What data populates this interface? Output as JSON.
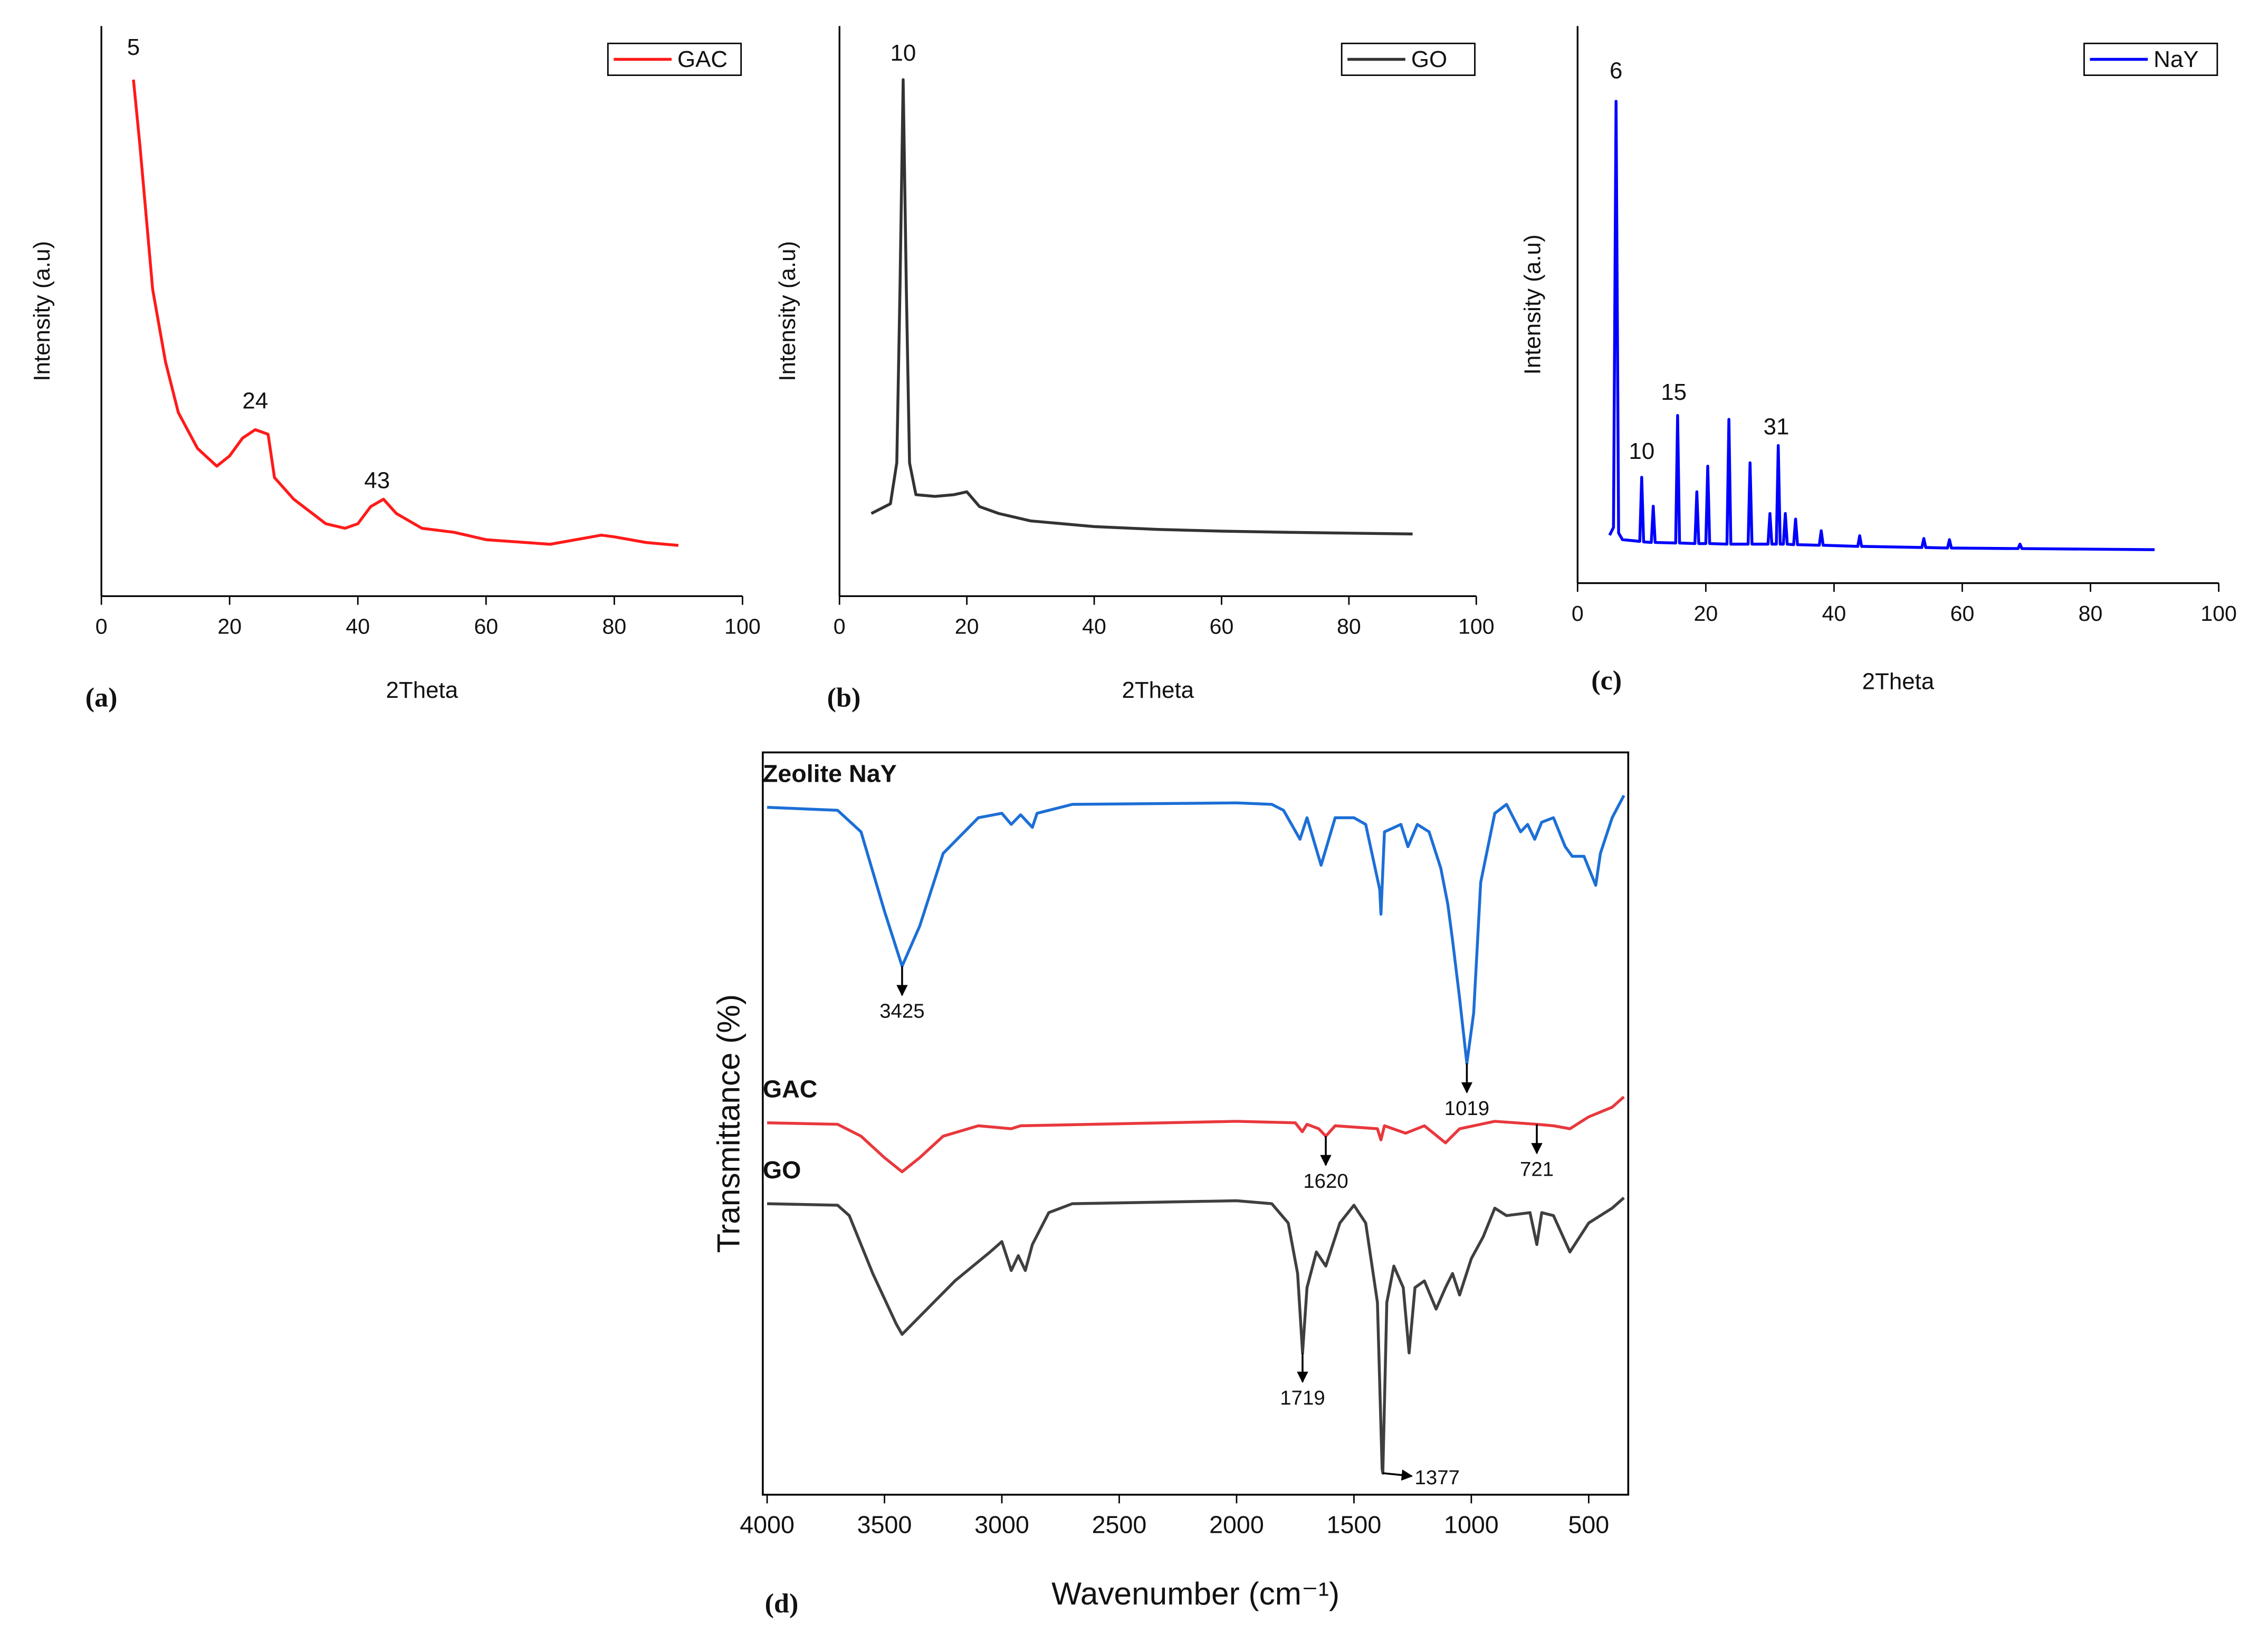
{
  "chart_data": [
    {
      "type": "line",
      "label": "(a)",
      "xlabel": "2Theta",
      "ylabel": "Intensity (a.u)",
      "x": [
        5,
        6,
        7,
        8,
        10,
        12,
        15,
        18,
        20,
        22,
        24,
        26,
        27,
        30,
        35,
        38,
        40,
        42,
        44,
        46,
        50,
        55,
        60,
        70,
        78,
        80,
        85,
        90
      ],
      "series": [
        {
          "name": "GAC",
          "color": "#ff1a1a",
          "values": [
            90.6,
            79.2,
            66.5,
            53.8,
            41.1,
            32.2,
            25.9,
            22.8,
            24.6,
            27.7,
            29.2,
            28.4,
            20.8,
            17.0,
            12.7,
            11.9,
            12.7,
            15.7,
            17.0,
            14.5,
            11.9,
            11.2,
            9.9,
            9.1,
            10.7,
            10.4,
            9.4,
            8.9
          ]
        }
      ],
      "xlim": [
        0,
        100
      ],
      "xticks": [
        0,
        20,
        40,
        60,
        80,
        100
      ],
      "ylim": [
        0,
        100
      ],
      "legend": "upper right",
      "annotations": [
        {
          "x": 5,
          "y": 96
        },
        {
          "x": 24,
          "y": 34
        },
        {
          "x": 43,
          "y": 20
        }
      ]
    },
    {
      "type": "line",
      "label": "(b)",
      "xlabel": "2Theta",
      "ylabel": "Intensity (a.u)",
      "x": [
        5,
        8,
        9,
        9.5,
        10,
        10.5,
        11,
        12,
        15,
        18,
        20,
        22,
        25,
        30,
        40,
        50,
        60,
        70,
        90
      ],
      "series": [
        {
          "name": "GO",
          "color": "#333333",
          "values": [
            14.5,
            16.2,
            23.4,
            53.8,
            90.6,
            53.8,
            23.4,
            17.8,
            17.5,
            17.8,
            18.3,
            15.7,
            14.5,
            13.2,
            12.2,
            11.7,
            11.4,
            11.2,
            10.9
          ]
        }
      ],
      "xlim": [
        0,
        100
      ],
      "xticks": [
        0,
        20,
        40,
        60,
        80,
        100
      ],
      "ylim": [
        0,
        100
      ],
      "legend": "upper right",
      "annotations": [
        {
          "x": 10,
          "y": 95
        }
      ]
    },
    {
      "type": "line",
      "label": "(c)",
      "xlabel": "2Theta",
      "ylabel": "Intensity (a.u)",
      "x": [
        5,
        5.6,
        6,
        6.4,
        7,
        9.7,
        10,
        10.3,
        11.5,
        11.8,
        12.1,
        15.3,
        15.6,
        15.9,
        18.3,
        18.6,
        18.9,
        20,
        20.3,
        20.6,
        23.3,
        23.6,
        23.9,
        26.6,
        26.9,
        27.2,
        29.7,
        30,
        30.3,
        31,
        31.3,
        31.6,
        32.1,
        32.4,
        32.7,
        33.7,
        34,
        34.3,
        37.7,
        38,
        38.3,
        43.7,
        44,
        44.3,
        53.7,
        54,
        54.3,
        57.7,
        58,
        58.3,
        68.7,
        69,
        69.3,
        90
      ],
      "series": [
        {
          "name": "NaY",
          "color": "#0000ff",
          "values": [
            8.6,
            10,
            86.5,
            9,
            7.8,
            7.5,
            19,
            7.4,
            7.3,
            13.8,
            7.3,
            7.2,
            30.1,
            7.2,
            7.1,
            16.4,
            7.1,
            7.1,
            21,
            7.1,
            7,
            29.4,
            7,
            7,
            21.6,
            7,
            7,
            12.5,
            7,
            7,
            24.7,
            7,
            7,
            12.5,
            7,
            6.9,
            11.5,
            6.9,
            6.8,
            9.4,
            6.8,
            6.6,
            8.5,
            6.6,
            6.4,
            8,
            6.4,
            6.3,
            7.8,
            6.3,
            6.2,
            7,
            6.2,
            6.0
          ]
        }
      ],
      "xlim": [
        0,
        100
      ],
      "xticks": [
        0,
        20,
        40,
        60,
        80,
        100
      ],
      "ylim": [
        0,
        100
      ],
      "legend": "upper right",
      "annotations": [
        {
          "x": 6,
          "y": 91.7
        },
        {
          "x": 10,
          "y": 23.4
        },
        {
          "x": 15,
          "y": 34
        },
        {
          "x": 31,
          "y": 27.8
        }
      ]
    },
    {
      "type": "line",
      "label": "(d)",
      "xlabel": "Wavenumber (cm⁻¹)",
      "ylabel": "Transmittance (%)",
      "series": [
        {
          "name": "Zeolite NaY",
          "color": "#1c6fd6",
          "x": [
            4000,
            3700,
            3600,
            3500,
            3425,
            3350,
            3250,
            3100,
            3000,
            2960,
            2920,
            2870,
            2850,
            2700,
            2000,
            1850,
            1800,
            1730,
            1700,
            1640,
            1580,
            1500,
            1450,
            1390,
            1385,
            1370,
            1300,
            1270,
            1230,
            1180,
            1130,
            1100,
            1080,
            1050,
            1019,
            990,
            960,
            900,
            850,
            790,
            760,
            730,
            700,
            650,
            600,
            570,
            520,
            470,
            450,
            400,
            350
          ],
          "values": [
            92.6,
            92.2,
            89.3,
            78.6,
            71.2,
            76.6,
            86.4,
            91.2,
            91.8,
            90.3,
            91.6,
            89.9,
            91.8,
            93.0,
            93.2,
            93.0,
            92.2,
            88.3,
            91.2,
            84.8,
            91.2,
            91.2,
            90.3,
            81.5,
            78.2,
            89.3,
            90.3,
            87.3,
            90.3,
            89.3,
            84.4,
            79.5,
            74.7,
            66.9,
            58.1,
            64.9,
            82.5,
            91.8,
            93.0,
            89.3,
            90.3,
            88.3,
            90.6,
            91.2,
            87.3,
            86.0,
            86.0,
            82.1,
            86.4,
            91.2,
            94.2
          ]
        },
        {
          "name": "GAC",
          "color": "#e8383d",
          "x": [
            4000,
            3700,
            3600,
            3500,
            3425,
            3350,
            3250,
            3100,
            2960,
            2920,
            2000,
            1750,
            1720,
            1700,
            1650,
            1620,
            1580,
            1400,
            1385,
            1370,
            1280,
            1200,
            1110,
            1050,
            900,
            721,
            650,
            580,
            500,
            400,
            350
          ],
          "values": [
            50.1,
            49.9,
            48.3,
            45.4,
            43.5,
            45.4,
            48.3,
            49.7,
            49.3,
            49.7,
            50.3,
            50.1,
            48.9,
            49.9,
            49.3,
            48.3,
            49.7,
            49.3,
            47.8,
            49.7,
            48.7,
            49.7,
            47.4,
            49.3,
            50.3,
            49.9,
            49.7,
            49.3,
            50.9,
            52.2,
            53.6
          ]
        },
        {
          "name": "GO",
          "color": "#3f3f3f",
          "x": [
            4000,
            3700,
            3650,
            3550,
            3450,
            3425,
            3350,
            3200,
            3050,
            3000,
            2960,
            2930,
            2900,
            2870,
            2800,
            2700,
            2000,
            1850,
            1780,
            1740,
            1719,
            1700,
            1660,
            1620,
            1560,
            1500,
            1450,
            1400,
            1380,
            1377,
            1360,
            1330,
            1290,
            1265,
            1240,
            1200,
            1150,
            1110,
            1080,
            1050,
            1000,
            950,
            900,
            850,
            750,
            721,
            700,
            650,
            580,
            500,
            400,
            350
          ],
          "values": [
            39.2,
            39.0,
            37.6,
            29.8,
            23.0,
            21.6,
            24.0,
            28.8,
            32.7,
            34.1,
            30.2,
            32.2,
            30.2,
            33.7,
            38.0,
            39.2,
            39.6,
            39.2,
            36.6,
            29.8,
            19.1,
            27.9,
            32.7,
            30.8,
            36.6,
            39.0,
            36.6,
            25.9,
            3.5,
            2.9,
            25.9,
            30.8,
            27.9,
            19.1,
            27.9,
            28.8,
            25.0,
            27.9,
            29.8,
            26.9,
            31.8,
            34.7,
            38.6,
            37.6,
            38.0,
            33.7,
            38.0,
            37.6,
            32.7,
            36.6,
            38.6,
            40.0
          ]
        }
      ],
      "xlim": [
        4000,
        350
      ],
      "xticks": [
        4000,
        3500,
        3000,
        2500,
        2000,
        1500,
        1000,
        500
      ],
      "ylim": [
        0,
        100
      ],
      "annotations": [
        {
          "x": 3425,
          "y": 71.2,
          "arrow": "down"
        },
        {
          "x": 1019,
          "y": 58.1,
          "arrow": "down"
        },
        {
          "x": 1620,
          "y": 48.3,
          "arrow": "down"
        },
        {
          "x": 721,
          "y": 49.9,
          "arrow": "down"
        },
        {
          "x": 1719,
          "y": 19.1,
          "arrow": "down"
        },
        {
          "x": 1377,
          "y": 2.9,
          "arrow": "right"
        }
      ]
    }
  ]
}
